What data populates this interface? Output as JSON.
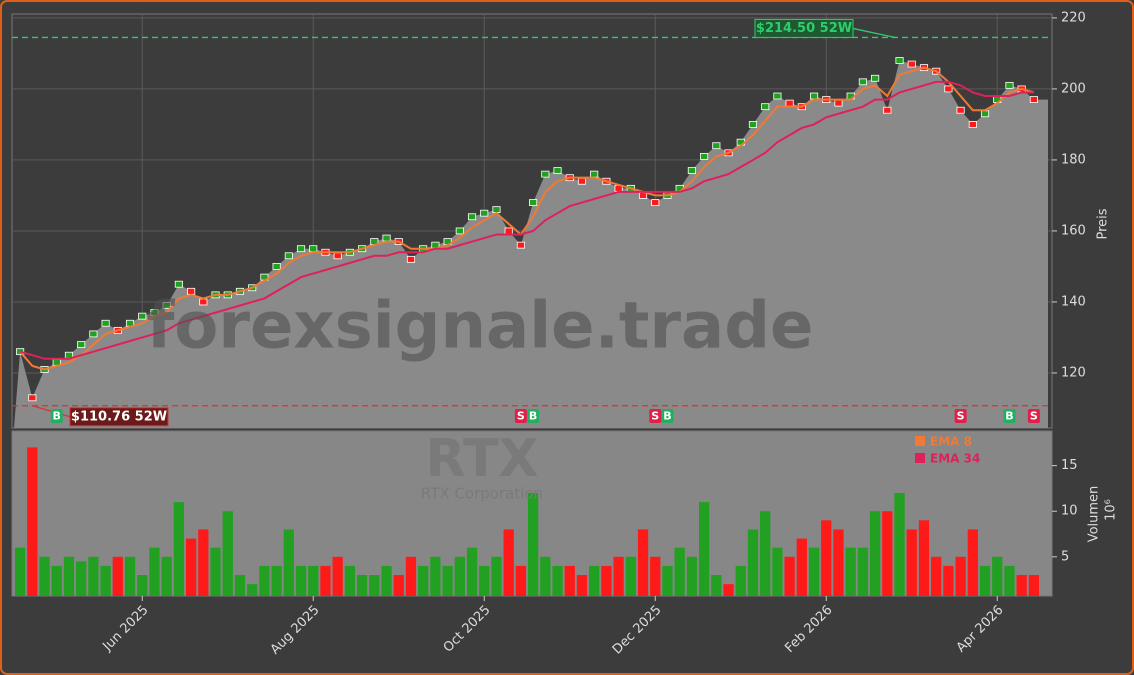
{
  "chart_data": {
    "type": "stock",
    "ticker": "RTX",
    "company": "RTX Corporation",
    "watermark": "forexsignale.trade",
    "categories": [
      null,
      null,
      null,
      null,
      null,
      null,
      null,
      null,
      null,
      null,
      "Jun 2025",
      null,
      null,
      null,
      null,
      null,
      null,
      null,
      null,
      null,
      null,
      null,
      null,
      null,
      "Aug 2025",
      null,
      null,
      null,
      null,
      null,
      null,
      null,
      null,
      null,
      null,
      null,
      null,
      null,
      "Oct 2025",
      null,
      null,
      null,
      null,
      null,
      null,
      null,
      null,
      null,
      null,
      null,
      null,
      null,
      "Dec 2025",
      null,
      null,
      null,
      null,
      null,
      null,
      null,
      null,
      null,
      null,
      null,
      null,
      null,
      "Feb 2026",
      null,
      null,
      null,
      null,
      null,
      null,
      null,
      null,
      null,
      null,
      null,
      null,
      null,
      "Apr 2026",
      null,
      null,
      null
    ],
    "close": [
      126,
      113,
      121,
      123,
      125,
      128,
      131,
      134,
      132,
      134,
      136,
      137,
      139,
      145,
      143,
      140,
      142,
      142,
      143,
      144,
      147,
      150,
      153,
      155,
      155,
      154,
      153,
      154,
      155,
      157,
      158,
      157,
      152,
      155,
      156,
      157,
      160,
      164,
      165,
      166,
      160,
      156,
      168,
      176,
      177,
      175,
      174,
      176,
      174,
      172,
      172,
      170,
      168,
      170,
      172,
      177,
      181,
      184,
      182,
      185,
      190,
      195,
      198,
      196,
      195,
      198,
      197,
      196,
      198,
      202,
      203,
      194,
      208,
      207,
      206,
      205,
      200,
      194,
      190,
      193,
      197,
      201,
      200,
      197
    ],
    "up_color": "#22a022",
    "down_color": "#ff1a1a",
    "ema": [
      {
        "name": "EMA 8",
        "color": "#f07a35",
        "values": [
          126,
          122,
          121,
          122,
          123,
          125,
          128,
          131,
          132,
          133,
          134,
          136,
          137,
          141,
          142,
          141,
          142,
          142,
          143,
          144,
          146,
          148,
          151,
          153,
          154,
          154,
          154,
          154,
          155,
          156,
          157,
          157,
          155,
          155,
          155,
          156,
          158,
          161,
          163,
          165,
          162,
          159,
          164,
          171,
          174,
          175,
          175,
          175,
          174,
          173,
          172,
          171,
          170,
          170,
          171,
          174,
          178,
          181,
          182,
          184,
          187,
          191,
          195,
          195,
          195,
          197,
          197,
          197,
          197,
          200,
          201,
          198,
          204,
          205,
          206,
          205,
          202,
          198,
          194,
          194,
          196,
          199,
          200,
          199
        ]
      },
      {
        "name": "EMA 34",
        "color": "#e0205a",
        "values": [
          126,
          125,
          124,
          124,
          124,
          125,
          126,
          127,
          128,
          129,
          130,
          131,
          132,
          134,
          135,
          136,
          137,
          138,
          139,
          140,
          141,
          143,
          145,
          147,
          148,
          149,
          150,
          151,
          152,
          153,
          153,
          154,
          154,
          154,
          155,
          155,
          156,
          157,
          158,
          159,
          159,
          159,
          160,
          163,
          165,
          167,
          168,
          169,
          170,
          171,
          171,
          171,
          171,
          171,
          171,
          172,
          174,
          175,
          176,
          178,
          180,
          182,
          185,
          187,
          189,
          190,
          192,
          193,
          194,
          195,
          197,
          197,
          199,
          200,
          201,
          202,
          202,
          201,
          199,
          198,
          198,
          198,
          199,
          199
        ]
      }
    ],
    "ylabel": "Preis",
    "ylim": [
      104.5,
      221.1
    ],
    "yticks": [
      120,
      140,
      160,
      180,
      200,
      220
    ],
    "grid": true,
    "annotations": [
      {
        "label": "$214.50 52W",
        "value": 214.5,
        "color": "#2ecc71"
      },
      {
        "label": "$110.76 52W",
        "value": 110.76,
        "color": "#e03030"
      }
    ],
    "signals": [
      {
        "label": "B",
        "index": 3
      },
      {
        "label": "S",
        "index": 41
      },
      {
        "label": "B",
        "index": 42
      },
      {
        "label": "S",
        "index": 52
      },
      {
        "label": "B",
        "index": 53
      },
      {
        "label": "S",
        "index": 77
      },
      {
        "label": "B",
        "index": 81
      },
      {
        "label": "S",
        "index": 83
      }
    ],
    "volume": {
      "ylabel": "Volumen",
      "unit": "10⁶",
      "ylim": [
        0.7,
        18.8
      ],
      "yticks": [
        5,
        10,
        15
      ],
      "values": [
        6,
        17,
        5,
        4,
        5,
        4.5,
        5,
        4,
        5,
        5,
        3,
        6,
        5,
        11,
        7,
        8,
        6,
        10,
        3,
        2,
        4,
        4,
        8,
        4,
        4,
        4,
        5,
        4,
        3,
        3,
        4,
        3,
        5,
        4,
        5,
        4,
        5,
        6,
        4,
        5,
        8,
        4,
        12,
        5,
        4,
        4,
        3,
        4,
        4,
        5,
        5,
        8,
        5,
        4,
        6,
        5,
        11,
        3,
        2,
        4,
        8,
        10,
        6,
        5,
        7,
        6,
        9,
        8,
        6,
        6,
        10,
        10,
        12,
        8,
        9,
        5,
        4,
        5,
        8,
        4,
        5,
        4,
        3,
        3
      ]
    }
  }
}
